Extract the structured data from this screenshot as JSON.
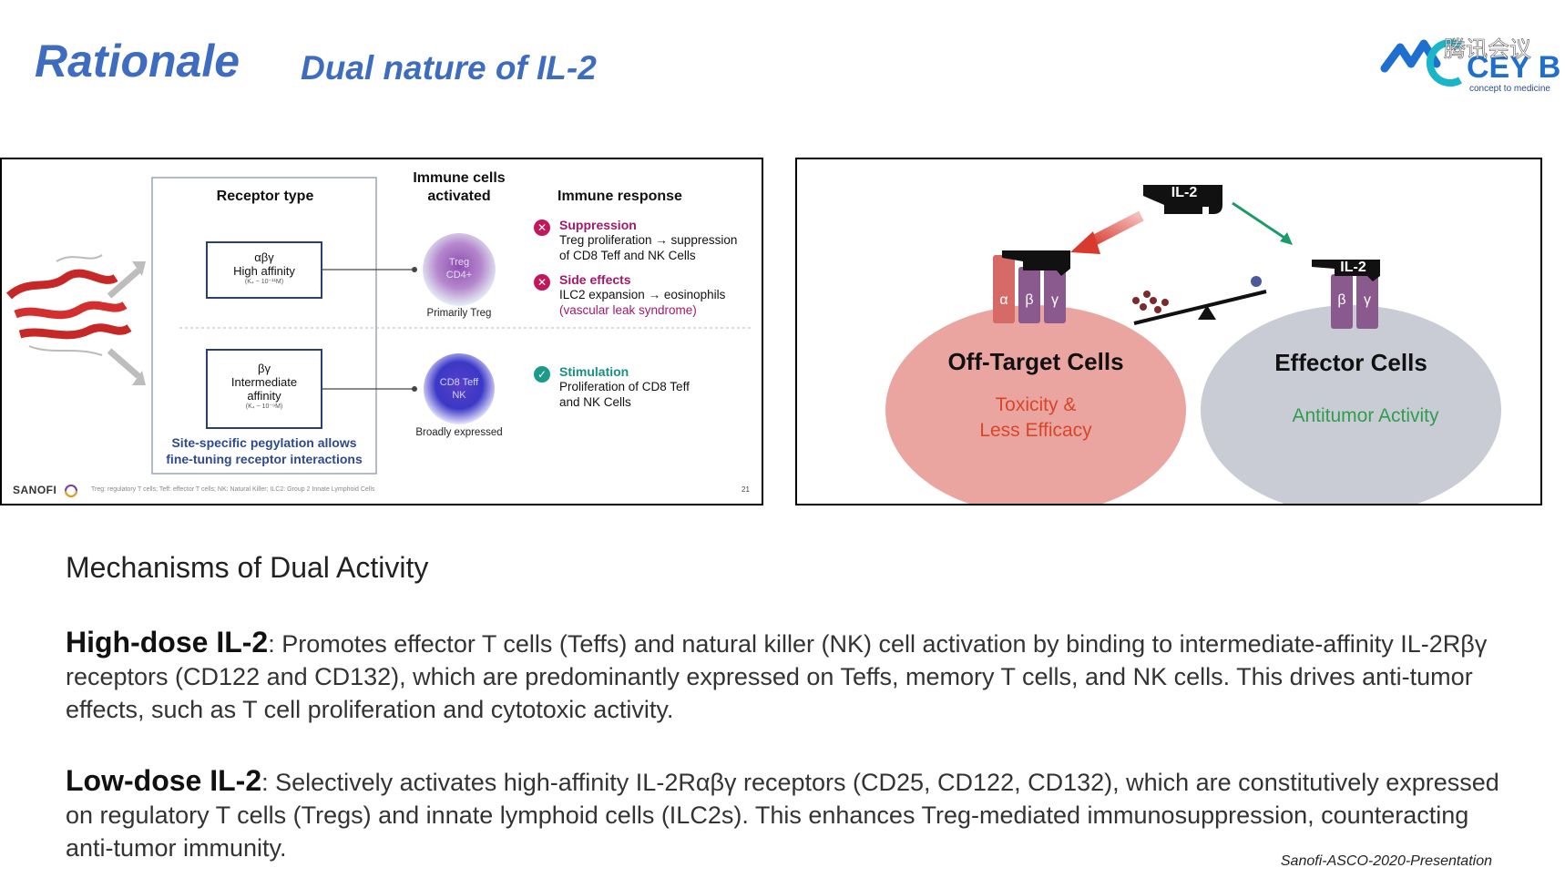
{
  "header": {
    "title": "Rationale",
    "subtitle": "Dual nature of IL-2",
    "logo_text": "CEY BIO",
    "logo_tagline": "concept to medicine",
    "watermark": "腾讯会议",
    "brand_color": "#3d6cc0"
  },
  "left_panel": {
    "receptor_header": "Receptor type",
    "cells_header_line1": "Immune cells",
    "cells_header_line2": "activated",
    "response_header": "Immune response",
    "receptor_high": {
      "line1": "αβγ",
      "line2": "High affinity",
      "kd": "(K₄ ~ 10⁻¹¹M)"
    },
    "receptor_mid": {
      "line1": "βγ",
      "line2": "Intermediate",
      "line3": "affinity",
      "kd": "(K₄ ~ 10⁻⁹M)"
    },
    "cell_treg": {
      "line1": "Treg",
      "line2": "CD4+",
      "caption": "Primarily Treg"
    },
    "cell_cd8": {
      "line1": "CD8 Teff",
      "line2": "NK",
      "caption": "Broadly expressed"
    },
    "responses": [
      {
        "title": "Suppression",
        "line1": "Treg proliferation → suppression",
        "line2": "of CD8 Teff and NK Cells",
        "status": "negative"
      },
      {
        "title": "Side effects",
        "line1": "ILC2 expansion → eosinophils",
        "line2": "(vascular leak syndrome)",
        "status": "negative"
      },
      {
        "title": "Stimulation",
        "line1": "Proliferation of CD8 Teff",
        "line2": "and NK Cells",
        "status": "positive"
      }
    ],
    "pegylation_line1": "Site-specific pegylation allows",
    "pegylation_line2": "fine-tuning receptor interactions",
    "company": "SANOFI",
    "footnote": "Treg: regulatory T cells; Teff: effector T cells; NK: Natural Killer; ILC2: Group 2 Innate Lymphoid Cells",
    "page_number": "21"
  },
  "right_panel": {
    "il2_label": "IL-2",
    "subunit_alpha": "α",
    "subunit_beta": "β",
    "subunit_gamma": "γ",
    "offtarget_title": "Off-Target Cells",
    "offtarget_line1": "Toxicity &",
    "offtarget_line2": "Less Efficacy",
    "effector_title": "Effector Cells",
    "effector_sub": "Antitumor Activity"
  },
  "body": {
    "section_title": "Mechanisms of Dual Activity",
    "high_dose_label": "High-dose IL-2",
    "high_dose_text": ": Promotes effector T cells (Teffs) and natural killer (NK) cell activation by binding to intermediate-affinity IL-2Rβγ receptors (CD122 and CD132), which are predominantly expressed on Teffs, memory T cells, and NK cells. This drives anti-tumor effects, such as T cell proliferation and cytotoxic activity.",
    "low_dose_label": "Low-dose IL-2",
    "low_dose_text": ": Selectively activates high-affinity IL-2Rαβγ receptors (CD25, CD122, CD132), which are constitutively expressed on regulatory T cells (Tregs) and innate lymphoid cells (ILC2s). This enhances Treg-mediated immunosuppression, counteracting anti-tumor immunity.",
    "citation": "Sanofi-ASCO-2020-Presentation"
  }
}
